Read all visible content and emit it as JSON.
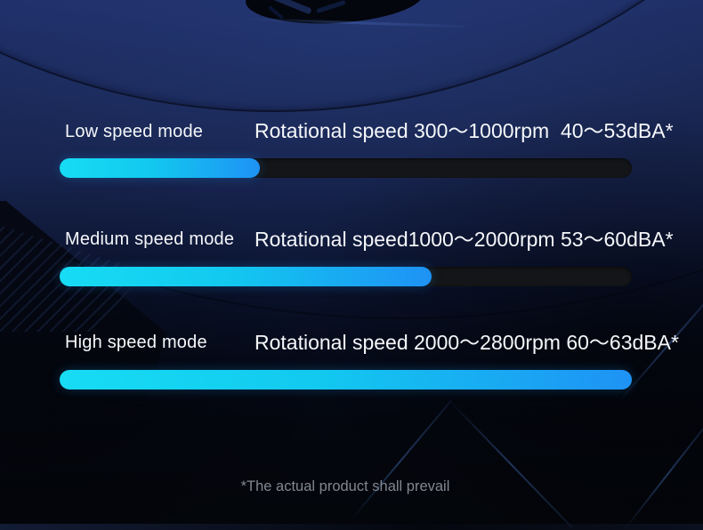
{
  "chart_data": {
    "type": "bar",
    "orientation": "horizontal",
    "title": "",
    "categories": [
      "Low speed mode",
      "Medium speed mode",
      "High speed mode"
    ],
    "values_percent": [
      35,
      65,
      100
    ],
    "annotations": [
      "Rotational speed 300～1000rpm  40～53dBA*",
      "Rotational speed1000～2000rpm 53～60dBA*",
      "Rotational speed 2000～2800rpm 60～63dBA*"
    ],
    "rpm_ranges": [
      [
        300,
        1000
      ],
      [
        1000,
        2000
      ],
      [
        2000,
        2800
      ]
    ],
    "dba_ranges": [
      [
        40,
        53
      ],
      [
        53,
        60
      ],
      [
        60,
        63
      ]
    ],
    "footnote": "*The actual product shall prevail",
    "legend": "none",
    "grid": false
  },
  "modes": [
    {
      "label": "Low speed mode",
      "spec": "Rotational speed 300～1000rpm  40～53dBA*",
      "fill": "35%"
    },
    {
      "label": "Medium speed mode",
      "spec": "Rotational speed1000～2000rpm 53～60dBA*",
      "fill": "65%"
    },
    {
      "label": "High speed mode",
      "spec": "Rotational speed 2000～2800rpm 60～63dBA*",
      "fill": "100%"
    }
  ],
  "footnote": "*The actual product shall prevail",
  "colors": {
    "bar_fill_start": "#17dcf4",
    "bar_fill_mid": "#12c9ef",
    "bar_fill_end": "#1e92f5",
    "bar_track": "#141518",
    "text_primary": "#f5f7fa",
    "footnote_text": "#828790",
    "background_navy": "#1c2b5c"
  }
}
